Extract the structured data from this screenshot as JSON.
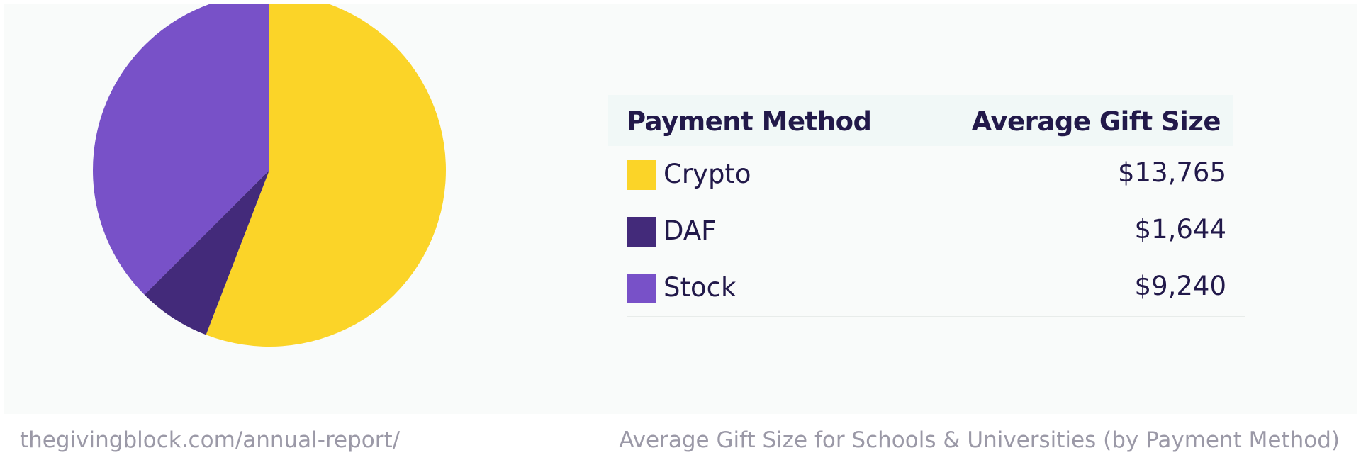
{
  "chart_data": {
    "type": "pie",
    "title": "",
    "categories": [
      "Crypto",
      "DAF",
      "Stock"
    ],
    "values": [
      13765,
      1644,
      9240
    ],
    "colors": [
      "#fbd428",
      "#432a7a",
      "#7851c8"
    ],
    "start": "12 o'clock",
    "direction": "clockwise",
    "legend_placement": "right"
  },
  "table": {
    "header_method": "Payment Method",
    "header_value": "Average Gift Size",
    "rows": [
      {
        "label": "Crypto",
        "value": "$13,765"
      },
      {
        "label": "DAF",
        "value": "$1,644"
      },
      {
        "label": "Stock",
        "value": "$9,240"
      }
    ]
  },
  "footer": {
    "url": "thegivingblock.com/annual-report/",
    "caption": "Average Gift Size for Schools & Universities (by Payment Method)"
  }
}
